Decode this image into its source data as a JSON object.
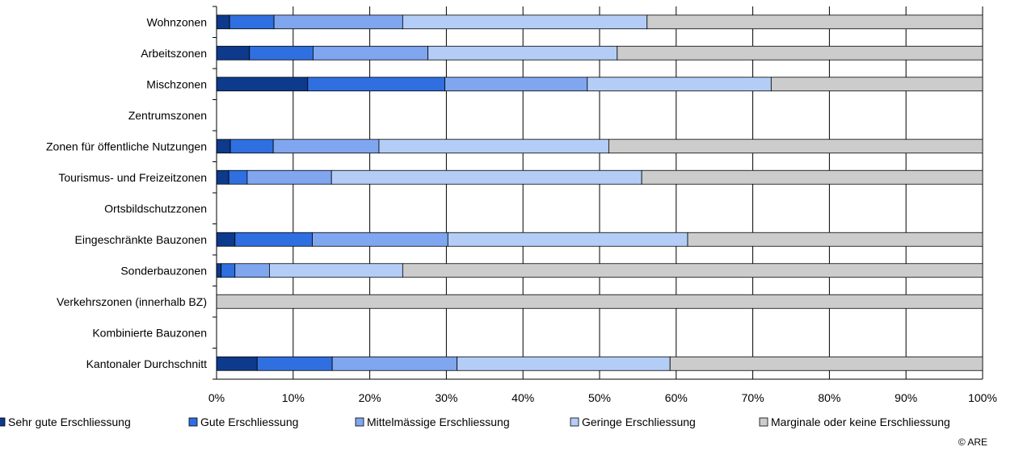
{
  "chart_data": {
    "type": "bar",
    "orientation": "horizontal",
    "stacked": "percent",
    "categories": [
      "Wohnzonen",
      "Arbeitszonen",
      "Mischzonen",
      "Zentrumszonen",
      "Zonen für öffentliche Nutzungen",
      "Tourismus- und Freizeitzonen",
      "Ortsbildschutzzonen",
      "Eingeschränkte Bauzonen",
      "Sonderbauzonen",
      "Verkehrszonen (innerhalb BZ)",
      "Kombinierte Bauzonen",
      "Kantonaler Durchschnitt"
    ],
    "series": [
      {
        "name": "Sehr gute Erschliessung",
        "color": "#0d3a8c",
        "values": [
          1.7,
          4.3,
          11.9,
          0,
          1.8,
          1.6,
          0,
          2.4,
          0.6,
          0,
          0,
          5.3
        ]
      },
      {
        "name": "Gute Erschliessung",
        "color": "#2f6fe0",
        "values": [
          5.8,
          8.3,
          17.9,
          0,
          5.6,
          2.4,
          0,
          10.1,
          1.8,
          0,
          0,
          9.8
        ]
      },
      {
        "name": "Mittelmässige Erschliessung",
        "color": "#7fa6ef",
        "values": [
          16.8,
          15.0,
          18.6,
          0,
          13.8,
          11.0,
          0,
          17.7,
          4.5,
          0,
          0,
          16.3
        ]
      },
      {
        "name": "Geringe Erschliessung",
        "color": "#b3cdf6",
        "values": [
          31.9,
          24.7,
          24.0,
          0,
          30.0,
          40.5,
          0,
          31.3,
          17.4,
          0,
          0,
          27.8
        ]
      },
      {
        "name": "Marginale oder keine Erschliessung",
        "color": "#cccccc",
        "values": [
          43.8,
          47.7,
          27.6,
          0,
          48.8,
          44.5,
          0,
          38.5,
          75.7,
          100,
          0,
          40.8
        ]
      }
    ],
    "xlim": [
      0,
      100
    ],
    "xticks": [
      "0%",
      "10%",
      "20%",
      "30%",
      "40%",
      "50%",
      "60%",
      "70%",
      "80%",
      "90%",
      "100%"
    ],
    "grid": "vertical",
    "legend": "bottom"
  },
  "credit": "© ARE"
}
